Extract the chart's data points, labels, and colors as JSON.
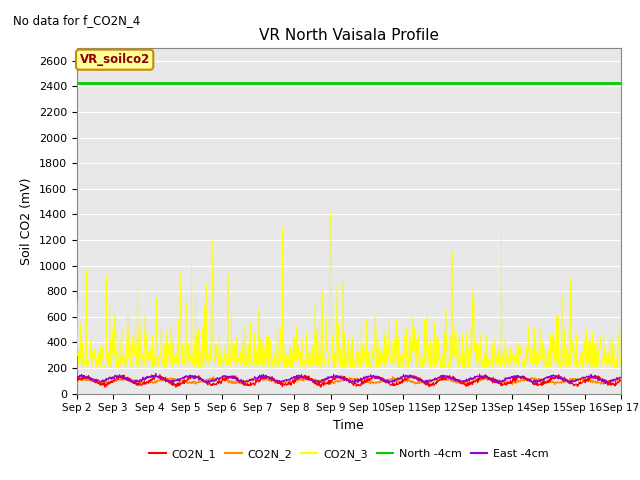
{
  "title": "VR North Vaisala Profile",
  "no_data_text": "No data for f_CO2N_4",
  "xlabel": "Time",
  "ylabel": "Soil CO2 (mV)",
  "xlim_days": [
    2,
    17
  ],
  "ylim": [
    0,
    2700
  ],
  "yticks": [
    0,
    200,
    400,
    600,
    800,
    1000,
    1200,
    1400,
    1600,
    1800,
    2000,
    2200,
    2400,
    2600
  ],
  "xtick_labels": [
    "Sep 2",
    "Sep 3",
    "Sep 4",
    "Sep 5",
    "Sep 6",
    "Sep 7",
    "Sep 8",
    "Sep 9",
    "Sep 10",
    "Sep 11",
    "Sep 12",
    "Sep 13",
    "Sep 14",
    "Sep 15",
    "Sep 16",
    "Sep 17"
  ],
  "north_4cm_value": 2430,
  "legend_entries": [
    "CO2N_1",
    "CO2N_2",
    "CO2N_3",
    "North -4cm",
    "East -4cm"
  ],
  "legend_colors": [
    "#ff0000",
    "#ff8c00",
    "#ffff00",
    "#00cc00",
    "#9900cc"
  ],
  "box_label": "VR_soilco2",
  "box_bg": "#ffff99",
  "box_border": "#cc8800",
  "bg_color": "#e8e8e8",
  "grid_color": "#ffffff",
  "co2n1_color": "#ff0000",
  "co2n2_color": "#ff8c00",
  "co2n3_color": "#ffff00",
  "north_color": "#00cc00",
  "east_color": "#9900cc",
  "seed": 42,
  "figwidth": 6.4,
  "figheight": 4.8,
  "dpi": 100
}
